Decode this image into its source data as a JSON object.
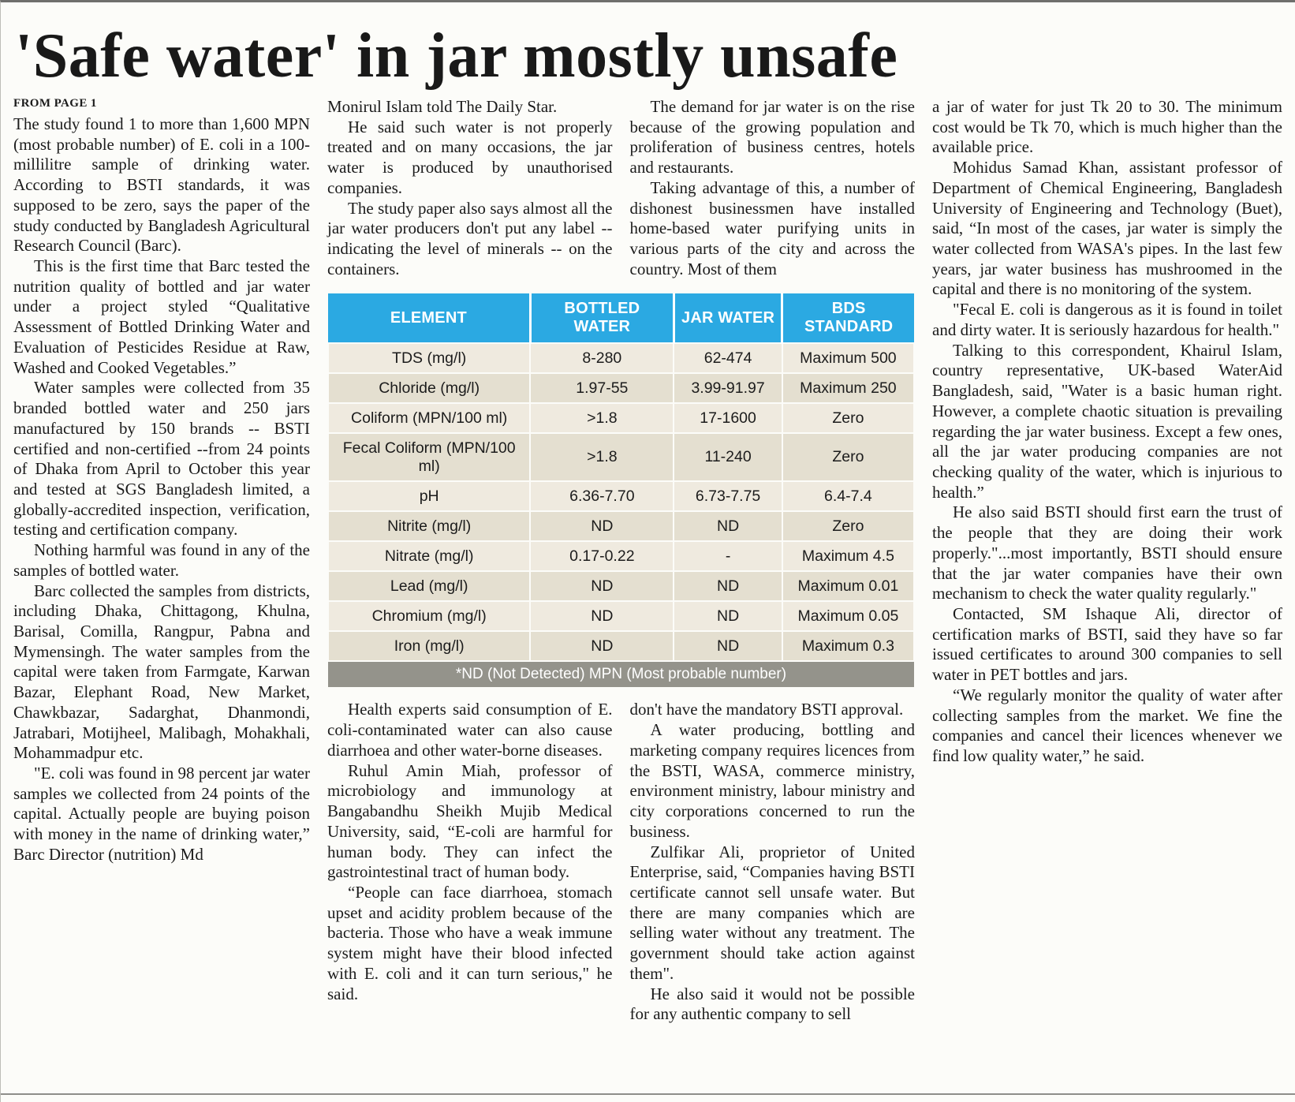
{
  "masthead": {
    "headline": "'Safe water' in jar mostly unsafe"
  },
  "article": {
    "kicker": "FROM PAGE 1",
    "column1": [
      {
        "indent": false,
        "text": "The study found 1 to more than 1,600 MPN (most probable number) of E. coli in a 100-millilitre sample of drinking water. According to BSTI standards, it was supposed to be zero, says the paper of the study conducted by Bangladesh Agricultural Research Council (Barc)."
      },
      {
        "indent": true,
        "text": "This is the first time that Barc tested the nutrition quality of bottled and jar water under a project styled “Qualitative Assessment of Bottled Drinking Water and Evaluation of Pesticides Residue at Raw, Washed and Cooked Vegetables.”"
      },
      {
        "indent": true,
        "text": "Water samples were collected from 35 branded bottled water and 250 jars manufactured by 150 brands -- BSTI certified and non-certified --from 24 points of Dhaka from April to October this year and tested at SGS Bangladesh limited, a globally-accredited inspection, verification, testing and certification company."
      },
      {
        "indent": true,
        "text": "Nothing harmful was found in any of the samples of bottled water."
      },
      {
        "indent": true,
        "text": "Barc collected the samples from districts, including Dhaka, Chittagong, Khulna, Barisal, Comilla, Rangpur, Pabna and Mymensingh. The water samples from the capital were taken from Farmgate, Karwan Bazar, Elephant Road, New Market, Chawkbazar, Sadarghat, Dhanmondi, Jatrabari, Motijheel, Malibagh, Mohakhali, Mohammadpur etc."
      },
      {
        "indent": true,
        "text": "\"E. coli was found in 98 percent jar water samples we collected from 24 points of the capital. Actually people are buying poison with money in the name of drinking water,” Barc Director (nutrition) Md"
      }
    ],
    "column2_top": [
      {
        "indent": false,
        "text": "Monirul Islam told The Daily Star."
      },
      {
        "indent": true,
        "text": "He said such water is not properly treated and on many occasions, the jar water is produced by unauthorised companies."
      },
      {
        "indent": true,
        "text": "The study paper also says almost all the jar water producers don't put any label -- indicating the level of minerals -- on the containers."
      }
    ],
    "column3_top": [
      {
        "indent": true,
        "text": "The demand for jar water is on the rise because of the growing population and proliferation of business centres, hotels and restaurants."
      },
      {
        "indent": true,
        "text": "Taking advantage of this, a number of dishonest businessmen have installed home-based water purifying units in various parts of the city and across the country. Most of them"
      }
    ],
    "column2_bottom": [
      {
        "indent": true,
        "text": "Health experts said consumption of E. coli-contaminated water can also cause diarrhoea and other water-borne diseases."
      },
      {
        "indent": true,
        "text": "Ruhul Amin Miah, professor of microbiology and immunology at Bangabandhu Sheikh Mujib Medical University, said, “E-coli are harmful for human body. They can infect the gastrointestinal tract of human body."
      },
      {
        "indent": true,
        "text": "“People can face diarrhoea, stomach upset and acidity problem because of the bacteria. Those who have a weak immune system might have their blood infected with E. coli and it can turn serious,\" he said."
      }
    ],
    "column3_bottom": [
      {
        "indent": false,
        "text": "don't have the mandatory BSTI approval."
      },
      {
        "indent": true,
        "text": "A water producing, bottling and marketing company requires licences from the BSTI, WASA, commerce ministry, environment ministry, labour ministry and city corporations concerned to run the business."
      },
      {
        "indent": true,
        "text": "Zulfikar Ali, proprietor of United Enterprise, said, “Companies having BSTI certificate cannot sell unsafe water. But there are many companies which are selling water without any treatment. The government should take action against them\"."
      },
      {
        "indent": true,
        "text": "He also said it would not be possible for any authentic company to sell"
      }
    ],
    "column4": [
      {
        "indent": false,
        "text": "a jar of water for just Tk 20 to 30. The minimum cost would be Tk 70, which is much higher than the available price."
      },
      {
        "indent": true,
        "text": "Mohidus Samad Khan, assistant professor of Department of Chemical Engineering, Bangladesh University of Engineering and Technology (Buet), said, “In most of the cases, jar water is simply the water collected from WASA's pipes. In the last few years, jar water business has mushroomed in the capital and there is no monitoring of the system."
      },
      {
        "indent": true,
        "text": "\"Fecal E. coli is dangerous as it is found in toilet and dirty water. It is seriously hazardous for health.\""
      },
      {
        "indent": true,
        "text": "Talking to this correspondent, Khairul Islam, country representative, UK-based WaterAid Bangladesh, said, \"Water is a basic human right. However, a complete chaotic situation is prevailing regarding the jar water business. Except a few ones, all the jar water producing companies are not checking quality of the water, which is injurious to health.”"
      },
      {
        "indent": true,
        "text": "He also said BSTI should first earn the trust of the people that they are doing their work properly.\"...most importantly, BSTI should ensure that the jar water companies have their own mechanism to check the water quality regularly.\""
      },
      {
        "indent": true,
        "text": "Contacted, SM Ishaque Ali, director of certification marks of BSTI, said they have so far issued certificates to around 300 companies to sell water in PET bottles and jars."
      },
      {
        "indent": true,
        "text": "“We regularly monitor the quality of water after collecting samples from the market. We fine the companies and cancel their licences whenever we find low quality water,” he said."
      }
    ]
  },
  "table": {
    "headers": [
      "ELEMENT",
      "BOTTLED WATER",
      "JAR WATER",
      "BDS STANDARD"
    ],
    "rows": [
      [
        "TDS (mg/l)",
        "8-280",
        "62-474",
        "Maximum 500"
      ],
      [
        "Chloride (mg/l)",
        "1.97-55",
        "3.99-91.97",
        "Maximum 250"
      ],
      [
        "Coliform (MPN/100 ml)",
        ">1.8",
        "17-1600",
        "Zero"
      ],
      [
        "Fecal Coliform (MPN/100 ml)",
        ">1.8",
        "11-240",
        "Zero"
      ],
      [
        "pH",
        "6.36-7.70",
        "6.73-7.75",
        "6.4-7.4"
      ],
      [
        "Nitrite (mg/l)",
        "ND",
        "ND",
        "Zero"
      ],
      [
        "Nitrate (mg/l)",
        "0.17-0.22",
        "-",
        "Maximum 4.5"
      ],
      [
        "Lead (mg/l)",
        "ND",
        "ND",
        "Maximum 0.01"
      ],
      [
        "Chromium (mg/l)",
        "ND",
        "ND",
        "Maximum 0.05"
      ],
      [
        "Iron (mg/l)",
        "ND",
        "ND",
        "Maximum 0.3"
      ]
    ],
    "footnote": "*ND (Not Detected) MPN (Most probable number)",
    "colors": {
      "header_bg": "#2BA9E2",
      "row_light": "#EFEADF",
      "row_dark": "#E4DFD0",
      "footnote_bg": "#94938B"
    }
  }
}
